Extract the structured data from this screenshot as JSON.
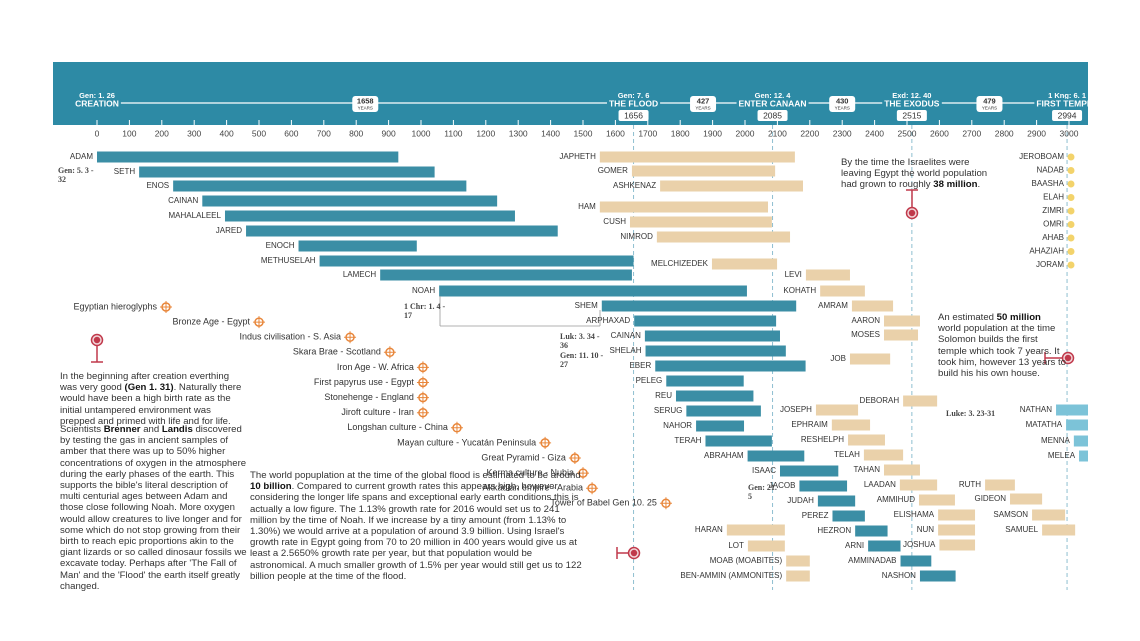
{
  "chart_data": {
    "type": "timeline",
    "xlim": [
      0,
      3000
    ],
    "xticks": [
      0,
      100,
      200,
      300,
      400,
      500,
      600,
      700,
      800,
      900,
      1000,
      1100,
      1200,
      1300,
      1400,
      1500,
      1600,
      1700,
      1800,
      1900,
      2000,
      2100,
      2200,
      2300,
      2400,
      2500,
      2600,
      2700,
      2800,
      2900,
      3000
    ],
    "milestones": [
      {
        "reference": "Gen: 1. 26",
        "label": "CREATION",
        "year": 0
      },
      {
        "reference": "Gen: 7. 6",
        "label": "THE FLOOD",
        "year": 1656
      },
      {
        "reference": "Gen: 12. 4",
        "label": "ENTER CANAAN",
        "year": 2085
      },
      {
        "reference": "Exd: 12. 40",
        "label": "THE EXODUS",
        "year": 2515
      },
      {
        "reference": "1 Kng: 6. 1",
        "label": "FIRST TEMPLE",
        "year": 2994
      }
    ],
    "intervals": [
      {
        "years": 1658,
        "unit": "YEARS"
      },
      {
        "years": 427,
        "unit": "YEARS"
      },
      {
        "years": 430,
        "unit": "YEARS"
      },
      {
        "years": 479,
        "unit": "YEARS"
      }
    ],
    "groups": [
      {
        "color": "#3b8ea5",
        "bars": [
          {
            "label": "ADAM",
            "start": 0,
            "end": 930
          },
          {
            "label": "SETH",
            "start": 130,
            "end": 1042
          },
          {
            "label": "ENOS",
            "start": 235,
            "end": 1140
          },
          {
            "label": "CAINAN",
            "start": 325,
            "end": 1235
          },
          {
            "label": "MAHALALEEL",
            "start": 395,
            "end": 1290
          },
          {
            "label": "JARED",
            "start": 460,
            "end": 1422
          },
          {
            "label": "ENOCH",
            "start": 622,
            "end": 987
          },
          {
            "label": "METHUSELAH",
            "start": 687,
            "end": 1656
          },
          {
            "label": "LAMECH",
            "start": 874,
            "end": 1651
          },
          {
            "label": "NOAH",
            "start": 1056,
            "end": 2006
          }
        ]
      },
      {
        "color": "#3b8ea5",
        "bars": [
          {
            "label": "SHEM",
            "start": 1558,
            "end": 2158
          },
          {
            "label": "ARPHAXAD",
            "start": 1658,
            "end": 2096
          },
          {
            "label": "CAINAN",
            "start": 1691,
            "end": 2108
          },
          {
            "label": "SHELAH",
            "start": 1693,
            "end": 2126
          },
          {
            "label": "EBER",
            "start": 1723,
            "end": 2187
          },
          {
            "label": "PELEG",
            "start": 1757,
            "end": 1996
          },
          {
            "label": "REU",
            "start": 1787,
            "end": 2026
          },
          {
            "label": "SERUG",
            "start": 1819,
            "end": 2049
          },
          {
            "label": "NAHOR",
            "start": 1849,
            "end": 1997
          },
          {
            "label": "TERAH",
            "start": 1878,
            "end": 2083
          },
          {
            "label": "ABRAHAM",
            "start": 2008,
            "end": 2183
          },
          {
            "label": "ISAAC",
            "start": 2108,
            "end": 2288
          },
          {
            "label": "JACOB",
            "start": 2168,
            "end": 2315
          },
          {
            "label": "JUDAH",
            "start": 2225,
            "end": 2340
          },
          {
            "label": "PEREZ",
            "start": 2270,
            "end": 2370
          },
          {
            "label": "HEZRON",
            "start": 2340,
            "end": 2440
          },
          {
            "label": "ARNI",
            "start": 2380,
            "end": 2480
          },
          {
            "label": "AMMINADAB",
            "start": 2480,
            "end": 2575
          },
          {
            "label": "NASHON",
            "start": 2540,
            "end": 2650
          }
        ]
      },
      {
        "color": "#ead1aa",
        "bars": [
          {
            "label": "JAPHETH",
            "start": 1552,
            "end": 2154
          },
          {
            "label": "GOMER",
            "start": 1651,
            "end": 2093
          },
          {
            "label": "ASHKENAZ",
            "start": 1738,
            "end": 2179
          },
          {
            "label": "HAM",
            "start": 1552,
            "end": 2071
          },
          {
            "label": "CUSH",
            "start": 1645,
            "end": 2083
          },
          {
            "label": "NIMROD",
            "start": 1728,
            "end": 2139
          },
          {
            "label": "MELCHIZEDEK",
            "start": 1898,
            "end": 2099
          }
        ]
      },
      {
        "color": "#ead1aa",
        "bars": [
          {
            "label": "LEVI",
            "start": 2188,
            "end": 2324
          },
          {
            "label": "KOHATH",
            "start": 2232,
            "end": 2370
          },
          {
            "label": "AMRAM",
            "start": 2330,
            "end": 2457
          },
          {
            "label": "AARON",
            "start": 2429,
            "end": 2540
          },
          {
            "label": "MOSES",
            "start": 2429,
            "end": 2534
          },
          {
            "label": "JOB",
            "start": 2324,
            "end": 2448
          }
        ]
      },
      {
        "color": "#ead1aa",
        "bars": [
          {
            "label": "DEBORAH",
            "start": 2488,
            "end": 2593
          }
        ]
      },
      {
        "color": "#ead1aa",
        "bars": [
          {
            "label": "JOSEPH",
            "start": 2219,
            "end": 2349
          },
          {
            "label": "EPHRAIM",
            "start": 2268,
            "end": 2386
          },
          {
            "label": "RESHELPH",
            "start": 2318,
            "end": 2432
          },
          {
            "label": "TELAH",
            "start": 2367,
            "end": 2488
          },
          {
            "label": "TAHAN",
            "start": 2429,
            "end": 2540
          },
          {
            "label": "LAADAN",
            "start": 2478,
            "end": 2593
          },
          {
            "label": "AMMIHUD",
            "start": 2537,
            "end": 2648
          },
          {
            "label": "ELISHAMA",
            "start": 2596,
            "end": 2710
          },
          {
            "label": "NUN",
            "start": 2596,
            "end": 2710
          },
          {
            "label": "JOSHUA",
            "start": 2600,
            "end": 2710
          }
        ]
      },
      {
        "color": "#ead1aa",
        "bars": [
          {
            "label": "HARAN",
            "start": 1944,
            "end": 2123
          },
          {
            "label": "LOT",
            "start": 2009,
            "end": 2123
          },
          {
            "label": "MOAB (MOABITES)",
            "start": 2127,
            "end": 2200
          },
          {
            "label": "BEN-AMMIN (AMMONITES)",
            "start": 2127,
            "end": 2200
          }
        ]
      },
      {
        "color": "#ead1aa",
        "bars": [
          {
            "label": "RUTH",
            "start": 2741,
            "end": 2833
          },
          {
            "label": "GIDEON",
            "start": 2818,
            "end": 2917
          },
          {
            "label": "SAMSON",
            "start": 2886,
            "end": 2988
          },
          {
            "label": "SAMUEL",
            "start": 2917,
            "end": 3019
          }
        ]
      },
      {
        "color": "#7cc3d8",
        "bars": [
          {
            "label": "NATHAN",
            "start": 2960,
            "end": 3060
          },
          {
            "label": "MATATHA",
            "start": 2991,
            "end": 3080
          },
          {
            "label": "MENNA",
            "start": 3015,
            "end": 3100
          },
          {
            "label": "MELEA",
            "start": 3031,
            "end": 3120
          }
        ]
      }
    ],
    "kings": [
      "JEROBOAM",
      "NADAB",
      "BAASHA",
      "ELAH",
      "ZIMRI",
      "OMRI",
      "AHAB",
      "AHAZIAH",
      "JORAM"
    ],
    "events": [
      {
        "label": "Egyptian hieroglyphs",
        "year": 213
      },
      {
        "label": "Bronze Age - Egypt",
        "year": 500
      },
      {
        "label": "Indus civilisation - S. Asia",
        "year": 781
      },
      {
        "label": "Skara Brae - Scotland",
        "year": 904
      },
      {
        "label": "Iron Age - W. Africa",
        "year": 1006
      },
      {
        "label": "First papyrus use - Egypt",
        "year": 1006
      },
      {
        "label": "Stonehenge - England",
        "year": 1006
      },
      {
        "label": "Jiroft culture - Iran",
        "year": 1006
      },
      {
        "label": "Longshan culture - China",
        "year": 1111
      },
      {
        "label": "Mayan culture - Yucatán Peninsula",
        "year": 1383
      },
      {
        "label": "Great Pyramid - Giza",
        "year": 1475
      },
      {
        "label": "Kerma culture - Nubia",
        "year": 1500
      },
      {
        "label": "Akkadian empire - Arabia",
        "year": 1528
      },
      {
        "label": "Tower of Babel Gen 10. 25",
        "year": 1756
      }
    ],
    "references": [
      "Gen: 5. 3 - 32",
      "1 Chr: 1. 4 - 17",
      "Luk: 3. 34 - 36",
      "Gen: 11. 10 - 27",
      "Gen: 21. 5",
      "Luke: 3. 23-31"
    ],
    "notes": [
      [
        "In the beginning after creation everthing was very good ",
        "(Gen 1. 31)",
        ". Naturally there would have been a high birth rate as the initial untampered environment was prepped and primed with life and for life."
      ],
      [
        "Scientists ",
        "Brenner",
        " and ",
        "Landis",
        " discovered by testing the gas in ancient samples of amber that there was up to 50% higher concentrations of oxygen in the atmosphere during the early phases of the earth. This supports the bible's literal description of multi centurial ages between Adam and those close following Noah.  More oxygen would allow creatures to live longer and for some which do not stop growing from their birth to reach epic proportions akin to the giant lizards or so called dinosaur fossils we excavate today.  Perhaps after 'The Fall of Man' and the 'Flood' the earth itself greatly changed."
      ],
      [
        "The world popuplation at the time of the global flood is estimated to be around ",
        "10 billion",
        ". Compared to current growth rates this appears high, however considering the longer life spans and exceptional early earth conditions this is actually a low figure. The 1.13% growth rate for 2016 would set us to 241 million by the time of Noah. If we increase by a tiny amount (from 1.13% to 1.30%) we would arrive at a population of around 3.9 billion. Using Israel's growth rate in Egypt going from 70 to 20 million in 400 years would give us at least a 2.5650% growth rate per year, but that population would be astronomical. A much smaller growth of 1.5% per year would still get us to 122 billion people at the time of the flood."
      ],
      [
        "By the time the Israelites were leaving Egypt the world population had grown to roughly ",
        "38 million",
        "."
      ],
      [
        "An estimated ",
        "50 million",
        " world population at the time Solomon builds the first temple which took 7 years.  It took him, however 13 years to build his his own house."
      ]
    ]
  }
}
